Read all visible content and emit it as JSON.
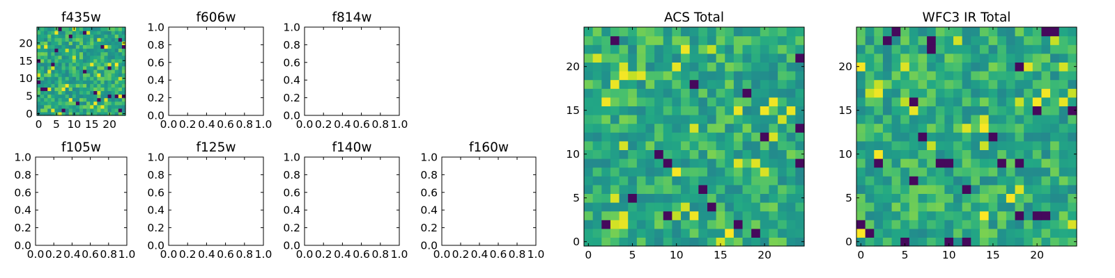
{
  "figure": {
    "colormap": "viridis",
    "colors": {
      "axis_frame": "#000000",
      "background": "#ffffff"
    }
  },
  "chart_data": [
    {
      "id": "f435w",
      "type": "heatmap",
      "title": "f435w",
      "size": [
        25,
        25
      ],
      "x_ticks": [
        "0",
        "5",
        "10",
        "15",
        "20"
      ],
      "y_ticks": [
        "0",
        "5",
        "10",
        "15",
        "20"
      ],
      "xlim": [
        -0.5,
        24.5
      ],
      "ylim": [
        -0.5,
        24.5
      ],
      "values_note": "25x25 per-pixel intensities rendered on a viridis scale (pixel values not legible)"
    },
    {
      "id": "f606w",
      "type": "heatmap",
      "title": "f606w",
      "empty": true,
      "x_ticks": [
        "0.0",
        "0.2",
        "0.4",
        "0.6",
        "0.8",
        "1.0"
      ],
      "y_ticks": [
        "0.0",
        "0.2",
        "0.4",
        "0.6",
        "0.8",
        "1.0"
      ],
      "xlim": [
        0,
        1
      ],
      "ylim": [
        0,
        1
      ]
    },
    {
      "id": "f814w",
      "type": "heatmap",
      "title": "f814w",
      "empty": true,
      "x_ticks": [
        "0.0",
        "0.2",
        "0.4",
        "0.6",
        "0.8",
        "1.0"
      ],
      "y_ticks": [
        "0.0",
        "0.2",
        "0.4",
        "0.6",
        "0.8",
        "1.0"
      ],
      "xlim": [
        0,
        1
      ],
      "ylim": [
        0,
        1
      ]
    },
    {
      "id": "f105w",
      "type": "heatmap",
      "title": "f105w",
      "empty": true,
      "x_ticks": [
        "0.0",
        "0.2",
        "0.4",
        "0.6",
        "0.8",
        "1.0"
      ],
      "y_ticks": [
        "0.0",
        "0.2",
        "0.4",
        "0.6",
        "0.8",
        "1.0"
      ],
      "xlim": [
        0,
        1
      ],
      "ylim": [
        0,
        1
      ]
    },
    {
      "id": "f125w",
      "type": "heatmap",
      "title": "f125w",
      "empty": true,
      "x_ticks": [
        "0.0",
        "0.2",
        "0.4",
        "0.6",
        "0.8",
        "1.0"
      ],
      "y_ticks": [
        "0.0",
        "0.2",
        "0.4",
        "0.6",
        "0.8",
        "1.0"
      ],
      "xlim": [
        0,
        1
      ],
      "ylim": [
        0,
        1
      ]
    },
    {
      "id": "f140w",
      "type": "heatmap",
      "title": "f140w",
      "empty": true,
      "x_ticks": [
        "0.0",
        "0.2",
        "0.4",
        "0.6",
        "0.8",
        "1.0"
      ],
      "y_ticks": [
        "0.0",
        "0.2",
        "0.4",
        "0.6",
        "0.8",
        "1.0"
      ],
      "xlim": [
        0,
        1
      ],
      "ylim": [
        0,
        1
      ]
    },
    {
      "id": "f160w",
      "type": "heatmap",
      "title": "f160w",
      "empty": true,
      "x_ticks": [
        "0.0",
        "0.2",
        "0.4",
        "0.6",
        "0.8",
        "1.0"
      ],
      "y_ticks": [
        "0.0",
        "0.2",
        "0.4",
        "0.6",
        "0.8",
        "1.0"
      ],
      "xlim": [
        0,
        1
      ],
      "ylim": [
        0,
        1
      ]
    },
    {
      "id": "acs-total",
      "type": "heatmap",
      "title": "ACS Total",
      "size": [
        25,
        25
      ],
      "x_ticks": [
        "0",
        "5",
        "10",
        "15",
        "20"
      ],
      "y_ticks": [
        "0",
        "5",
        "10",
        "15",
        "20"
      ],
      "xlim": [
        -0.5,
        24.5
      ],
      "ylim": [
        -0.5,
        24.5
      ],
      "values_note": "25x25 summed ACS intensities, viridis scale (pixel values not legible)"
    },
    {
      "id": "wfc3-ir-total",
      "type": "heatmap",
      "title": "WFC3 IR Total",
      "size": [
        25,
        25
      ],
      "x_ticks": [
        "0",
        "5",
        "10",
        "15",
        "20"
      ],
      "y_ticks": [
        "0",
        "5",
        "10",
        "15",
        "20"
      ],
      "xlim": [
        -0.5,
        24.5
      ],
      "ylim": [
        -0.5,
        24.5
      ],
      "values_note": "25x25 summed WFC3 IR intensities, viridis scale (pixel values not legible)"
    }
  ]
}
